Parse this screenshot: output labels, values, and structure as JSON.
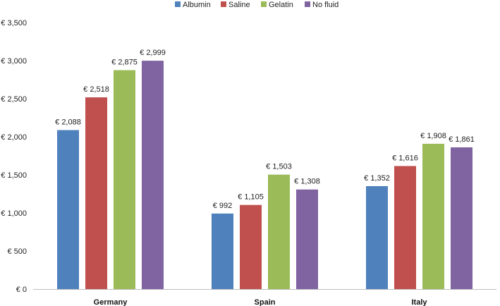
{
  "chart_data": {
    "type": "bar",
    "title": "",
    "xlabel": "",
    "ylabel": "",
    "categories": [
      "Germany",
      "Spain",
      "Italy"
    ],
    "series": [
      {
        "name": "Albumin",
        "color": "#4f81bd",
        "values": [
          2088,
          992,
          1352
        ],
        "labels": [
          "€ 2,088",
          "€ 992",
          "€ 1,352"
        ]
      },
      {
        "name": "Saline",
        "color": "#c0504d",
        "values": [
          2518,
          1105,
          1616
        ],
        "labels": [
          "€ 2,518",
          "€ 1,105",
          "€ 1,616"
        ]
      },
      {
        "name": "Gelatin",
        "color": "#9bbb59",
        "values": [
          2875,
          1503,
          1908
        ],
        "labels": [
          "€ 2,875",
          "€ 1,503",
          "€ 1,908"
        ]
      },
      {
        "name": "No fluid",
        "color": "#8064a2",
        "values": [
          2999,
          1308,
          1861
        ],
        "labels": [
          "€ 2,999",
          "€ 1,308",
          "€ 1,861"
        ]
      }
    ],
    "ylim": [
      0,
      3500
    ],
    "yticks": [
      0,
      500,
      1000,
      1500,
      2000,
      2500,
      3000,
      3500
    ],
    "ytick_labels": [
      "€ 0",
      "€ 500",
      "€ 1,000",
      "€ 1,500",
      "€ 2,000",
      "€ 2,500",
      "€ 3,000",
      "€ 3,500"
    ],
    "grid": false,
    "legend_position": "top-center"
  }
}
